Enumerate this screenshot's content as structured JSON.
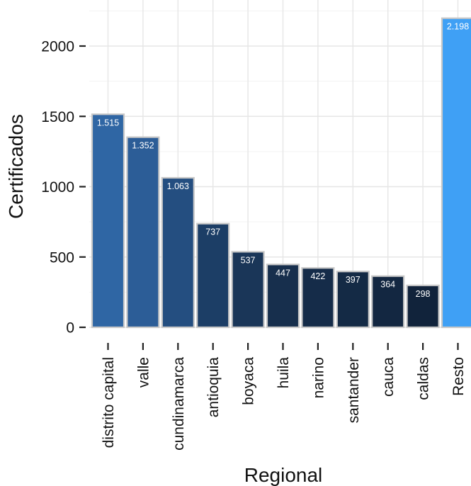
{
  "chart_data": {
    "type": "bar",
    "categories": [
      "distrito capital",
      "valle",
      "cundinamarca",
      "antioquia",
      "boyaca",
      "huila",
      "narino",
      "santander",
      "cauca",
      "caldas",
      "Resto"
    ],
    "values": [
      1515,
      1352,
      1063,
      737,
      537,
      447,
      422,
      397,
      364,
      298,
      2198
    ],
    "data_labels": [
      "1.515",
      "1.352",
      "1.063",
      "737",
      "537",
      "447",
      "422",
      "397",
      "364",
      "298",
      "2.198"
    ],
    "bar_colors": [
      "#2f66a4",
      "#2c5d97",
      "#244e80",
      "#1c3e66",
      "#1a3658",
      "#172f4d",
      "#152c49",
      "#142a45",
      "#132741",
      "#11233b",
      "#3fa0f5"
    ],
    "xlabel": "Regional",
    "ylabel": "Certificados",
    "ylim": [
      0,
      2250
    ],
    "yticks": [
      0,
      500,
      1000,
      1500,
      2000
    ],
    "ytick_labels": [
      "0",
      "500",
      "1000",
      "1500",
      "2000"
    ],
    "grid": true,
    "background_color": "#ffffff",
    "grid_color": "#e6e6e6"
  }
}
